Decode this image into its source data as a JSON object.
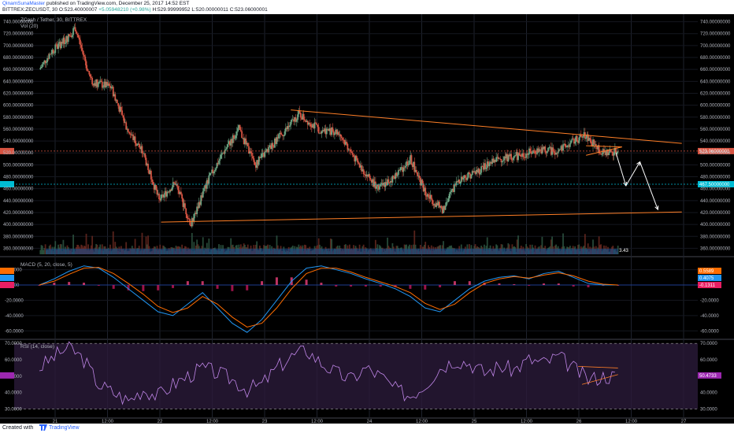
{
  "header": {
    "author": "QinamSunaMaster",
    "published": "published on TradingView.com, December 25, 2017 14:52 EST",
    "symbol": "BITTREX:ZECUSDT, 30",
    "open_label": "O:",
    "open": "523.40000007",
    "change": "+5.05948210 (+0.98%)",
    "high_label": "H:",
    "high": "529.99999952",
    "low_label": "L:",
    "low": "520.00000011",
    "close_label": "C:",
    "close": "523.06000001",
    "last_price": "523.06000001"
  },
  "footer": {
    "created_with": "Created with",
    "brand": "TradingView"
  },
  "colors": {
    "background": "#000000",
    "up": "#6ba583",
    "down": "#d75442",
    "trendline": "#ff7f27",
    "level": "#00bcd4",
    "macd": "#2196f3",
    "signal": "#ff6d00",
    "rsi": "#c086e8",
    "volume": "#1e4d8c"
  },
  "chart_data": [
    {
      "type": "candlestick",
      "title": "ZCash / Tether, 30, BITTREX",
      "volume_label": "Vol (20)",
      "ylim": [
        350,
        750
      ],
      "y_ticks": [
        "360.00000000",
        "380.00000000",
        "400.00000000",
        "420.00000000",
        "440.00000000",
        "460.00000000",
        "480.00000000",
        "500.00000000",
        "520.00000000",
        "540.00000000",
        "560.00000000",
        "580.00000000",
        "600.00000000",
        "620.00000000",
        "640.00000000",
        "660.00000000",
        "680.00000000",
        "700.00000000",
        "720.00000000",
        "740.00000000"
      ],
      "x_ticks": [
        "21",
        "12:00",
        "22",
        "12:00",
        "23",
        "12:00",
        "24",
        "12:00",
        "25",
        "12:00",
        "26",
        "12:00",
        "27"
      ],
      "price_path": [
        {
          "x": 0,
          "y": 660
        },
        {
          "x": 6,
          "y": 690
        },
        {
          "x": 14,
          "y": 712
        },
        {
          "x": 18,
          "y": 730
        },
        {
          "x": 26,
          "y": 640
        },
        {
          "x": 36,
          "y": 630
        },
        {
          "x": 44,
          "y": 560
        },
        {
          "x": 52,
          "y": 520
        },
        {
          "x": 60,
          "y": 440
        },
        {
          "x": 68,
          "y": 470
        },
        {
          "x": 76,
          "y": 400
        },
        {
          "x": 84,
          "y": 470
        },
        {
          "x": 92,
          "y": 520
        },
        {
          "x": 100,
          "y": 560
        },
        {
          "x": 108,
          "y": 500
        },
        {
          "x": 116,
          "y": 530
        },
        {
          "x": 124,
          "y": 560
        },
        {
          "x": 130,
          "y": 585
        },
        {
          "x": 140,
          "y": 560
        },
        {
          "x": 150,
          "y": 555
        },
        {
          "x": 160,
          "y": 500
        },
        {
          "x": 170,
          "y": 460
        },
        {
          "x": 178,
          "y": 480
        },
        {
          "x": 186,
          "y": 510
        },
        {
          "x": 194,
          "y": 450
        },
        {
          "x": 202,
          "y": 425
        },
        {
          "x": 210,
          "y": 475
        },
        {
          "x": 220,
          "y": 490
        },
        {
          "x": 230,
          "y": 510
        },
        {
          "x": 240,
          "y": 515
        },
        {
          "x": 250,
          "y": 525
        },
        {
          "x": 260,
          "y": 522
        },
        {
          "x": 268,
          "y": 540
        },
        {
          "x": 274,
          "y": 550
        },
        {
          "x": 282,
          "y": 520
        },
        {
          "x": 290,
          "y": 523
        }
      ],
      "trendlines": [
        {
          "from": [
            126,
            592
          ],
          "to": [
            322,
            536
          ]
        },
        {
          "from": [
            61,
            404
          ],
          "to": [
            322,
            421
          ]
        },
        {
          "from": [
            274,
            532
          ],
          "to": [
            292,
            530
          ]
        },
        {
          "from": [
            274,
            516
          ],
          "to": [
            292,
            530
          ]
        }
      ],
      "arrows": [
        {
          "from": [
            289,
            520
          ],
          "to": [
            294,
            465
          ]
        },
        {
          "from": [
            294,
            465
          ],
          "to": [
            301,
            505
          ]
        },
        {
          "from": [
            301,
            505
          ],
          "to": [
            310,
            425
          ]
        }
      ],
      "levels": [
        {
          "price": 523.06,
          "label": "523.06000001",
          "color": "#d75442"
        },
        {
          "price": 467.5,
          "label": "467.50000000",
          "color": "#00bcd4"
        }
      ],
      "volume_badge": "3.43"
    },
    {
      "type": "line",
      "title": "MACD (5, 20, close, 5)",
      "ylim": [
        -70,
        35
      ],
      "y_ticks": [
        "20.0000",
        "0.0000",
        "-20.0000",
        "-40.0000",
        "-60.0000"
      ],
      "last_values": [
        "0.5589",
        "0.4075",
        "-0.1311"
      ],
      "series": [
        {
          "name": "MACD",
          "values": [
            0,
            8,
            18,
            25,
            22,
            10,
            -5,
            -20,
            -35,
            -40,
            -25,
            -10,
            -30,
            -50,
            -62,
            -45,
            -20,
            5,
            22,
            25,
            20,
            15,
            8,
            2,
            -5,
            -15,
            -30,
            -35,
            -20,
            -5,
            5,
            10,
            12,
            8,
            15,
            18,
            10,
            2,
            0,
            0
          ]
        },
        {
          "name": "Signal",
          "values": [
            0,
            5,
            14,
            22,
            23,
            15,
            2,
            -12,
            -28,
            -36,
            -30,
            -15,
            -25,
            -42,
            -55,
            -50,
            -30,
            -5,
            15,
            22,
            22,
            17,
            10,
            4,
            -2,
            -10,
            -24,
            -32,
            -25,
            -10,
            2,
            8,
            11,
            9,
            13,
            16,
            12,
            5,
            1,
            0
          ]
        }
      ]
    },
    {
      "type": "line",
      "title": "RSI (14, close)",
      "ylim": [
        25,
        72
      ],
      "y_ticks": [
        "70.0000",
        "60.0000",
        "50.0000",
        "40.0000",
        "30.0000"
      ],
      "last_value": "50.4733",
      "series": [
        {
          "name": "RSI",
          "values": [
            55,
            62,
            68,
            60,
            45,
            40,
            35,
            42,
            38,
            45,
            50,
            55,
            52,
            48,
            42,
            45,
            55,
            62,
            66,
            58,
            52,
            48,
            55,
            50,
            42,
            38,
            45,
            55,
            60,
            58,
            52,
            56,
            54,
            60,
            58,
            62,
            55,
            48,
            50,
            50
          ]
        }
      ]
    }
  ]
}
